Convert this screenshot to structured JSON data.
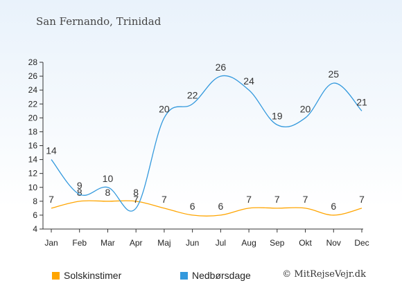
{
  "title": "San Fernando, Trinidad",
  "credit": "© MitRejseVejr.dk",
  "colors": {
    "sun": "#ffa500",
    "rain": "#3399dd"
  },
  "chart_data": {
    "type": "line",
    "categories": [
      "Jan",
      "Feb",
      "Mar",
      "Apr",
      "Maj",
      "Jun",
      "Jul",
      "Aug",
      "Sep",
      "Okt",
      "Nov",
      "Dec"
    ],
    "ylim": [
      4,
      28
    ],
    "yticks": [
      4,
      6,
      8,
      10,
      12,
      14,
      16,
      18,
      20,
      22,
      24,
      26,
      28
    ],
    "grid": false,
    "legend_position": "bottom",
    "series": [
      {
        "name": "Solskinstimer",
        "color": "#ffa500",
        "values": [
          7,
          8,
          8,
          8,
          7,
          6,
          6,
          7,
          7,
          7,
          6,
          7
        ]
      },
      {
        "name": "Nedbørsdage",
        "color": "#3399dd",
        "values": [
          14,
          9,
          10,
          7,
          20,
          22,
          26,
          24,
          19,
          20,
          25,
          21
        ]
      }
    ]
  }
}
